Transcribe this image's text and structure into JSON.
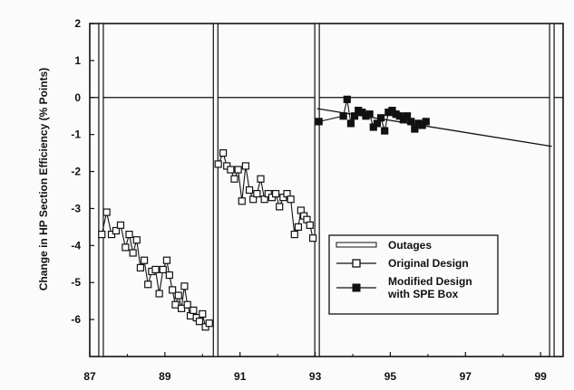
{
  "chart_data": {
    "type": "line",
    "title": "",
    "xlabel": "",
    "ylabel": "Change in HP Section Efficiency (% Points)",
    "xlim": [
      87,
      99.6
    ],
    "ylim": [
      -7,
      2
    ],
    "x_ticks": [
      87,
      89,
      91,
      93,
      95,
      97,
      99
    ],
    "x_tick_labels": [
      "87",
      "89",
      "91",
      "93",
      "95",
      "97",
      "99"
    ],
    "y_ticks": [
      2,
      1,
      0,
      -1,
      -2,
      -3,
      -4,
      -5,
      -6
    ],
    "y_tick_labels": [
      "2",
      "1",
      "0",
      "-1",
      "-2",
      "-3",
      "-4",
      "-5",
      "-6"
    ],
    "zero_line": 0,
    "outages": [
      87.3,
      90.35,
      93.05,
      99.3
    ],
    "series": [
      {
        "name": "Original Design",
        "marker": "open-square",
        "segments": [
          [
            [
              87.32,
              -3.7
            ],
            [
              87.45,
              -3.1
            ],
            [
              87.58,
              -3.7
            ],
            [
              87.7,
              -3.6
            ],
            [
              87.82,
              -3.45
            ],
            [
              87.95,
              -4.05
            ],
            [
              88.05,
              -3.7
            ],
            [
              88.15,
              -4.2
            ],
            [
              88.25,
              -3.85
            ],
            [
              88.35,
              -4.6
            ],
            [
              88.45,
              -4.4
            ],
            [
              88.55,
              -5.05
            ],
            [
              88.65,
              -4.7
            ],
            [
              88.75,
              -4.65
            ],
            [
              88.85,
              -5.3
            ],
            [
              88.95,
              -4.65
            ],
            [
              89.05,
              -4.4
            ],
            [
              89.12,
              -4.8
            ],
            [
              89.2,
              -5.2
            ],
            [
              89.28,
              -5.6
            ],
            [
              89.36,
              -5.35
            ],
            [
              89.44,
              -5.7
            ],
            [
              89.52,
              -5.1
            ],
            [
              89.6,
              -5.6
            ],
            [
              89.68,
              -5.9
            ],
            [
              89.76,
              -5.75
            ],
            [
              89.84,
              -5.95
            ],
            [
              89.92,
              -6.05
            ],
            [
              90.0,
              -5.85
            ],
            [
              90.08,
              -6.2
            ],
            [
              90.18,
              -6.1
            ]
          ],
          [
            [
              90.42,
              -1.8
            ],
            [
              90.55,
              -1.5
            ],
            [
              90.65,
              -1.85
            ],
            [
              90.75,
              -1.95
            ],
            [
              90.85,
              -2.2
            ],
            [
              90.95,
              -1.95
            ],
            [
              91.05,
              -2.8
            ],
            [
              91.15,
              -1.85
            ],
            [
              91.25,
              -2.5
            ],
            [
              91.35,
              -2.75
            ],
            [
              91.45,
              -2.6
            ],
            [
              91.55,
              -2.2
            ],
            [
              91.65,
              -2.75
            ],
            [
              91.75,
              -2.6
            ],
            [
              91.85,
              -2.7
            ],
            [
              91.95,
              -2.6
            ],
            [
              92.05,
              -2.95
            ],
            [
              92.15,
              -2.7
            ],
            [
              92.25,
              -2.6
            ],
            [
              92.35,
              -2.75
            ],
            [
              92.45,
              -3.7
            ],
            [
              92.55,
              -3.5
            ],
            [
              92.62,
              -3.05
            ],
            [
              92.7,
              -3.2
            ],
            [
              92.78,
              -3.3
            ],
            [
              92.86,
              -3.45
            ],
            [
              92.94,
              -3.8
            ]
          ]
        ]
      },
      {
        "name": "Modified Design with SPE Box",
        "marker": "filled-square",
        "segments": [
          [
            [
              93.1,
              -0.65
            ],
            [
              93.75,
              -0.5
            ],
            [
              93.85,
              -0.05
            ],
            [
              93.95,
              -0.7
            ],
            [
              94.05,
              -0.5
            ],
            [
              94.15,
              -0.35
            ],
            [
              94.25,
              -0.4
            ],
            [
              94.35,
              -0.5
            ],
            [
              94.45,
              -0.45
            ],
            [
              94.55,
              -0.8
            ],
            [
              94.65,
              -0.7
            ],
            [
              94.75,
              -0.55
            ],
            [
              94.85,
              -0.9
            ],
            [
              94.95,
              -0.4
            ],
            [
              95.05,
              -0.35
            ],
            [
              95.15,
              -0.45
            ],
            [
              95.25,
              -0.5
            ],
            [
              95.35,
              -0.6
            ],
            [
              95.45,
              -0.5
            ],
            [
              95.55,
              -0.65
            ],
            [
              95.65,
              -0.85
            ],
            [
              95.75,
              -0.7
            ],
            [
              95.85,
              -0.75
            ],
            [
              95.95,
              -0.65
            ]
          ]
        ]
      }
    ],
    "trend_line": [
      [
        93.05,
        -0.3
      ],
      [
        99.3,
        -1.32
      ]
    ],
    "legend": {
      "position": "lower-right",
      "entries": [
        {
          "label_lines": [
            "Outages"
          ],
          "style": "double-bar"
        },
        {
          "label_lines": [
            "Original Design"
          ],
          "style": "open-square"
        },
        {
          "label_lines": [
            "Modified Design",
            "with SPE Box"
          ],
          "style": "filled-square"
        }
      ]
    },
    "grid": false
  }
}
